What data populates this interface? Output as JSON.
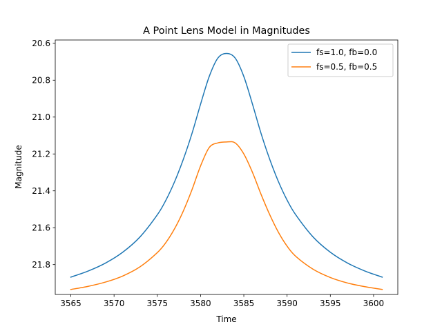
{
  "chart_data": {
    "type": "line",
    "title": "A Point Lens Model in Magnitudes",
    "xlabel": "Time",
    "ylabel": "Magnitude",
    "xlim": [
      3563.2,
      3602.8
    ],
    "ylim": [
      21.962,
      20.582
    ],
    "y_inverted": true,
    "grid": false,
    "legend_position": "top-right",
    "xticks": [
      3565,
      3570,
      3575,
      3580,
      3585,
      3590,
      3595,
      3600
    ],
    "xtick_labels": [
      "3565",
      "3570",
      "3575",
      "3580",
      "3585",
      "3590",
      "3595",
      "3600"
    ],
    "yticks": [
      20.6,
      20.8,
      21.0,
      21.2,
      21.4,
      21.6,
      21.8
    ],
    "ytick_labels": [
      "20.6",
      "20.8",
      "21.0",
      "21.2",
      "21.4",
      "21.6",
      "21.8"
    ],
    "series": [
      {
        "name": "fs=1.0, fb=0.0",
        "color": "#1f77b4",
        "x": [
          3565,
          3567,
          3569,
          3571,
          3573,
          3575,
          3576,
          3577,
          3578,
          3579,
          3580,
          3581,
          3582,
          3583,
          3584,
          3585,
          3586,
          3587,
          3588,
          3589,
          3590,
          3591,
          3593,
          3595,
          3597,
          3599,
          3601
        ],
        "y": [
          21.868,
          21.835,
          21.792,
          21.733,
          21.65,
          21.53,
          21.45,
          21.35,
          21.23,
          21.09,
          20.93,
          20.78,
          20.68,
          20.655,
          20.68,
          20.78,
          20.93,
          21.09,
          21.23,
          21.35,
          21.45,
          21.53,
          21.65,
          21.733,
          21.792,
          21.835,
          21.868
        ]
      },
      {
        "name": "fs=0.5, fb=0.5",
        "color": "#ff7f0e",
        "x": [
          3565,
          3567,
          3569,
          3571,
          3573,
          3575,
          3576,
          3577,
          3578,
          3579,
          3580,
          3581,
          3582,
          3583,
          3584,
          3585,
          3586,
          3587,
          3588,
          3589,
          3590,
          3591,
          3593,
          3595,
          3597,
          3599,
          3601
        ],
        "y": [
          21.935,
          21.918,
          21.895,
          21.862,
          21.812,
          21.735,
          21.68,
          21.605,
          21.51,
          21.395,
          21.265,
          21.165,
          21.14,
          21.135,
          21.14,
          21.2,
          21.3,
          21.42,
          21.53,
          21.625,
          21.7,
          21.755,
          21.825,
          21.87,
          21.9,
          21.92,
          21.935
        ]
      }
    ]
  }
}
